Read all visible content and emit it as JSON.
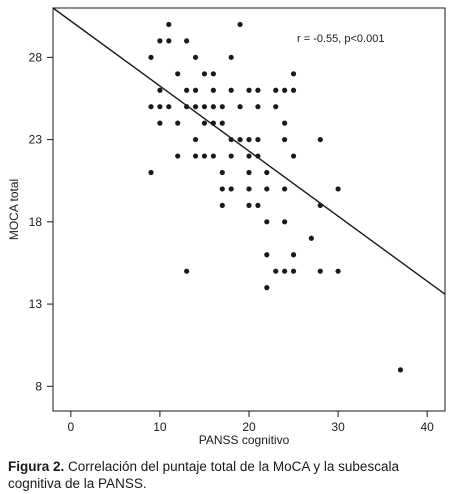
{
  "chart_data": {
    "type": "scatter",
    "title": "",
    "xlabel": "PANSS cognitivo",
    "ylabel": "MOCA total",
    "xlim": [
      -2,
      42
    ],
    "ylim": [
      6.5,
      31
    ],
    "xticks": [
      0,
      10,
      20,
      30,
      40
    ],
    "yticks": [
      8,
      13,
      18,
      23,
      28
    ],
    "grid": false,
    "annotation": "r = -0.55, p<0.001",
    "regression_line": {
      "x": [
        -2,
        42
      ],
      "y": [
        31,
        13.6
      ]
    },
    "points": [
      [
        11,
        30
      ],
      [
        19,
        30
      ],
      [
        10,
        29
      ],
      [
        11,
        29
      ],
      [
        13,
        29
      ],
      [
        9,
        28
      ],
      [
        14,
        28
      ],
      [
        18,
        28
      ],
      [
        12,
        27
      ],
      [
        15,
        27
      ],
      [
        16,
        27
      ],
      [
        25,
        27
      ],
      [
        10,
        26
      ],
      [
        13,
        26
      ],
      [
        14,
        26
      ],
      [
        16,
        26
      ],
      [
        18,
        26
      ],
      [
        20,
        26
      ],
      [
        21,
        26
      ],
      [
        23,
        26
      ],
      [
        24,
        26
      ],
      [
        25,
        26
      ],
      [
        9,
        25
      ],
      [
        10,
        25
      ],
      [
        11,
        25
      ],
      [
        13,
        25
      ],
      [
        14,
        25
      ],
      [
        15,
        25
      ],
      [
        16,
        25
      ],
      [
        17,
        25
      ],
      [
        19,
        25
      ],
      [
        21,
        25
      ],
      [
        23,
        25
      ],
      [
        10,
        24
      ],
      [
        12,
        24
      ],
      [
        15,
        24
      ],
      [
        16,
        24
      ],
      [
        17,
        24
      ],
      [
        24,
        24
      ],
      [
        14,
        23
      ],
      [
        18,
        23
      ],
      [
        19,
        23
      ],
      [
        20,
        23
      ],
      [
        21,
        23
      ],
      [
        24,
        23
      ],
      [
        28,
        23
      ],
      [
        12,
        22
      ],
      [
        14,
        22
      ],
      [
        15,
        22
      ],
      [
        16,
        22
      ],
      [
        18,
        22
      ],
      [
        20,
        22
      ],
      [
        21,
        22
      ],
      [
        25,
        22
      ],
      [
        9,
        21
      ],
      [
        17,
        21
      ],
      [
        20,
        21
      ],
      [
        22,
        21
      ],
      [
        17,
        20
      ],
      [
        18,
        20
      ],
      [
        20,
        20
      ],
      [
        22,
        20
      ],
      [
        24,
        20
      ],
      [
        30,
        20
      ],
      [
        17,
        19
      ],
      [
        20,
        19
      ],
      [
        21,
        19
      ],
      [
        28,
        19
      ],
      [
        22,
        18
      ],
      [
        24,
        18
      ],
      [
        27,
        17
      ],
      [
        22,
        16
      ],
      [
        25,
        16
      ],
      [
        13,
        15
      ],
      [
        23,
        15
      ],
      [
        24,
        15
      ],
      [
        25,
        15
      ],
      [
        28,
        15
      ],
      [
        30,
        15
      ],
      [
        22,
        14
      ],
      [
        37,
        9
      ]
    ]
  },
  "caption": {
    "lead": "Figura 2.",
    "text": " Correlación del puntaje total de la MoCA y la subescala cognitiva de la PANSS."
  }
}
